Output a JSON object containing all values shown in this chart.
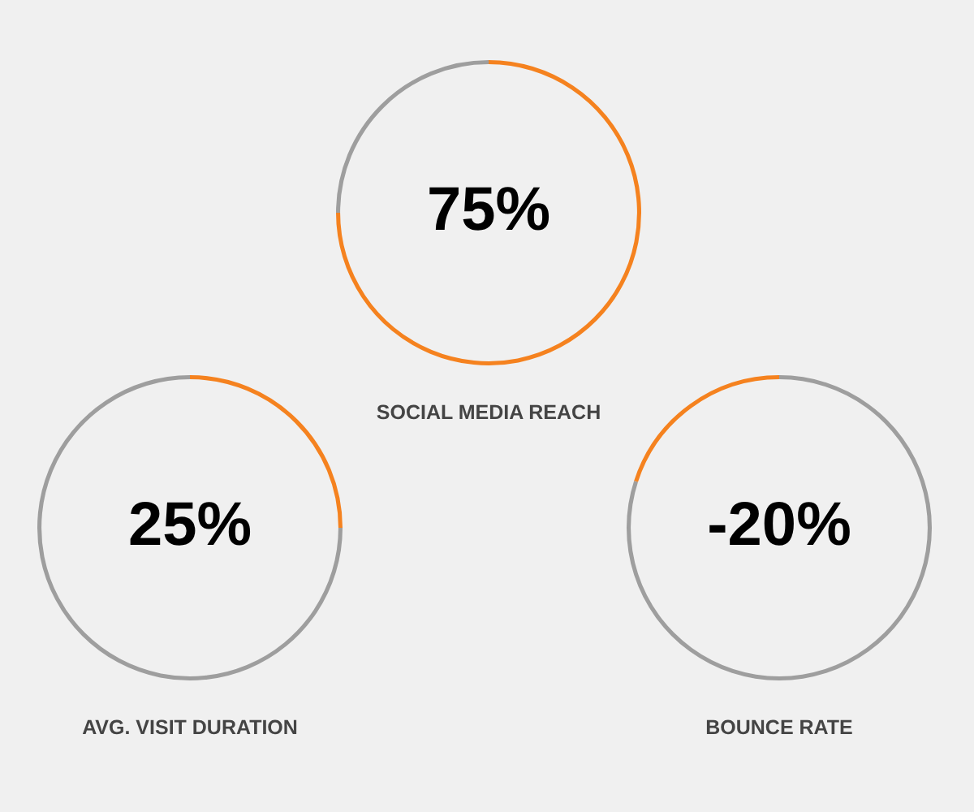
{
  "chart_data": [
    {
      "type": "donut",
      "title": "SOCIAL MEDIA REACH",
      "categories": [
        null,
        null
      ],
      "values": [
        75,
        25
      ],
      "colors": [
        "#f5821f",
        "#9e9e9e"
      ],
      "annotations": [
        "75%"
      ]
    },
    {
      "type": "donut",
      "title": "AVG. VISIT DURATION",
      "categories": [
        null,
        null
      ],
      "values": [
        25,
        75
      ],
      "colors": [
        "#f5821f",
        "#9e9e9e"
      ],
      "annotations": [
        "25%"
      ]
    },
    {
      "type": "donut",
      "title": "BOUNCE RATE",
      "categories": [
        null,
        null
      ],
      "values": [
        80,
        20
      ],
      "colors": [
        "#9e9e9e",
        "#f5821f"
      ],
      "annotations": [
        "-20%"
      ]
    }
  ]
}
